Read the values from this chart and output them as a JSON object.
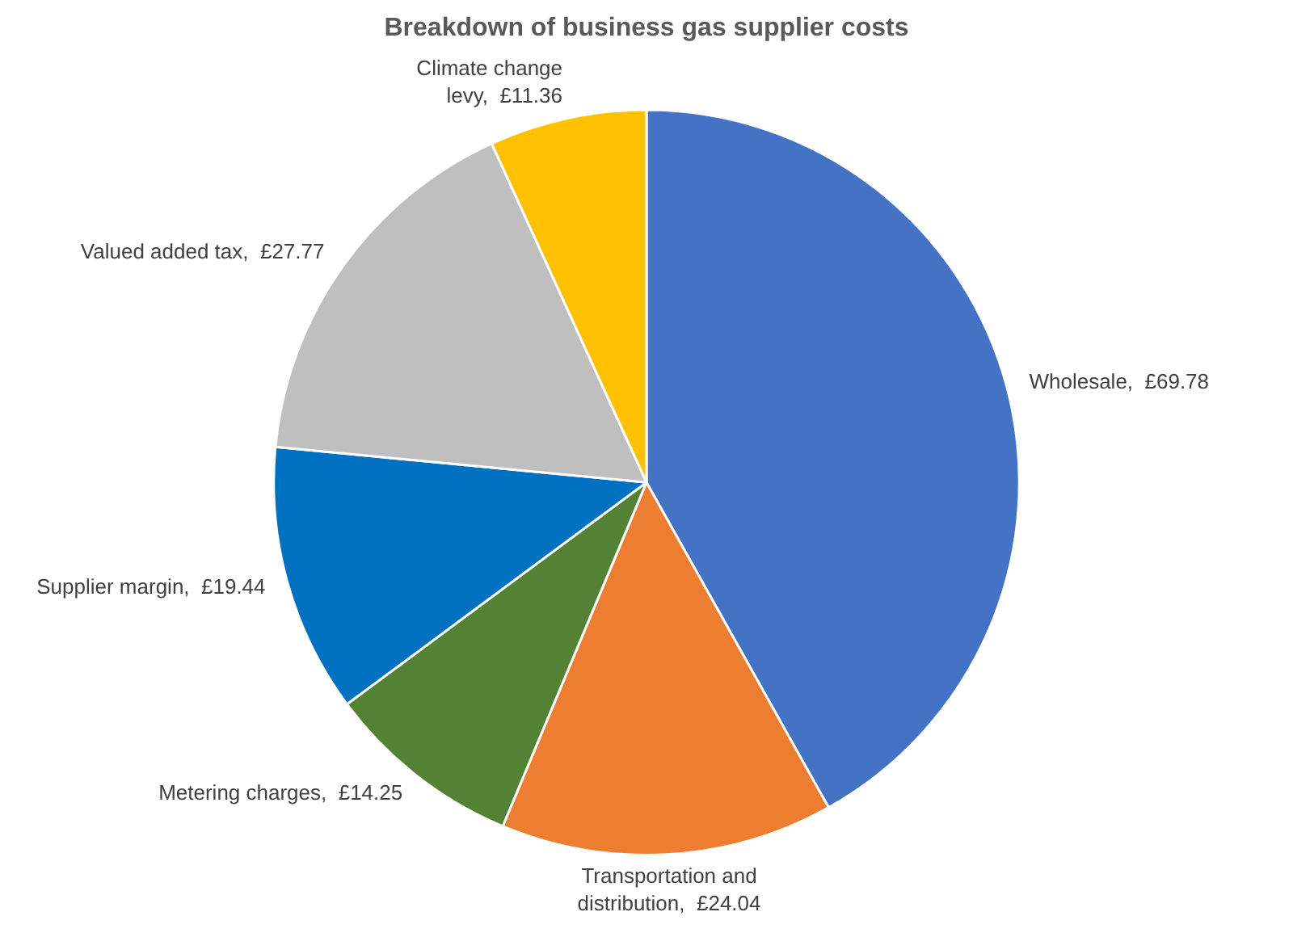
{
  "chart_data": {
    "type": "pie",
    "title": "Breakdown of business gas supplier costs",
    "categories": [
      "Wholesale",
      "Transportation and distribution",
      "Metering charges",
      "Supplier margin",
      "Valued added tax",
      "Climate change levy"
    ],
    "values": [
      69.78,
      24.04,
      14.25,
      19.44,
      27.77,
      11.36
    ],
    "value_labels": [
      "£69.78",
      "£24.04",
      "£14.25",
      "£19.44",
      "£27.77",
      "£11.36"
    ],
    "colors": [
      "#4472c4",
      "#ed7d31",
      "#548235",
      "#0070c0",
      "#bfbfbf",
      "#ffc000"
    ],
    "legend": false
  }
}
